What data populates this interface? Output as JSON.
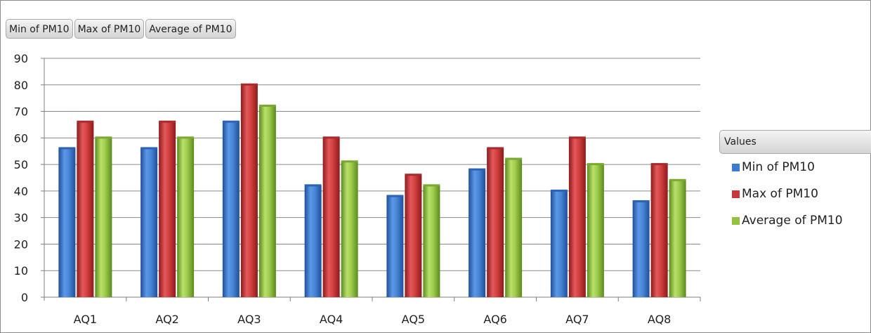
{
  "field_buttons": [
    "Min of PM10",
    "Max of PM10",
    "Average of PM10"
  ],
  "legend": {
    "title": "Values",
    "items": [
      {
        "label": "Min of PM10",
        "color": "#3d7bd0"
      },
      {
        "label": "Max of PM10",
        "color": "#c8363a"
      },
      {
        "label": "Average of PM10",
        "color": "#92c23f"
      }
    ]
  },
  "chart_data": {
    "type": "bar",
    "categories": [
      "AQ1",
      "AQ2",
      "AQ3",
      "AQ4",
      "AQ5",
      "AQ6",
      "AQ7",
      "AQ8"
    ],
    "series": [
      {
        "name": "Min of PM10",
        "values": [
          56,
          56,
          66,
          42,
          38,
          48,
          40,
          36
        ]
      },
      {
        "name": "Max of PM10",
        "values": [
          66,
          66,
          80,
          60,
          46,
          56,
          60,
          50
        ]
      },
      {
        "name": "Average of PM10",
        "values": [
          60,
          60,
          72,
          51,
          42,
          52,
          50,
          44
        ]
      }
    ],
    "ylim": [
      0,
      90
    ],
    "yticks": [
      0,
      10,
      20,
      30,
      40,
      50,
      60,
      70,
      80,
      90
    ],
    "grid": true,
    "legend_position": "right"
  }
}
